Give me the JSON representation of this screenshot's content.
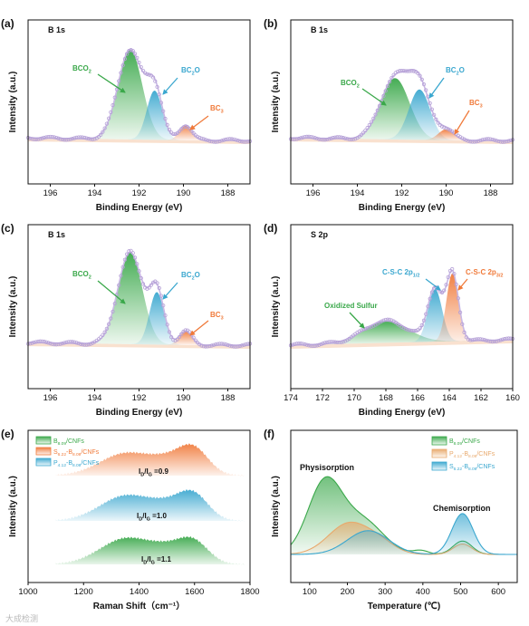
{
  "colors": {
    "green": "#3aa84a",
    "cyan": "#3aa7cf",
    "orange": "#f07a3a",
    "envelope": "#c9b8e4",
    "dots": "#b49fd6",
    "baseline": "#f4c9a8",
    "peach": "#e8a96c"
  },
  "watermark": "大成检测",
  "chart_data": [
    {
      "id": "a",
      "type": "area",
      "panel_label": "(a)",
      "title": "B 1s",
      "xlabel": "Binding Energy (eV)",
      "ylabel": "Intensity (a.u.)",
      "xlim": [
        197,
        187
      ],
      "xticks": [
        196,
        194,
        192,
        190,
        188
      ],
      "peaks": [
        {
          "name": "BCO2",
          "base": "BCO",
          "subscript": "2",
          "tail": "",
          "center": 192.4,
          "height": 0.82,
          "width": 0.55,
          "color": "#3aa84a"
        },
        {
          "name": "BC2O",
          "base": "BC",
          "subscript": "2",
          "tail": "O",
          "center": 191.3,
          "height": 0.45,
          "width": 0.35,
          "color": "#3aa7cf"
        },
        {
          "name": "BC3",
          "base": "BC",
          "subscript": "3",
          "tail": "",
          "center": 189.9,
          "height": 0.14,
          "width": 0.28,
          "color": "#f07a3a"
        }
      ]
    },
    {
      "id": "b",
      "type": "area",
      "panel_label": "(b)",
      "title": "B 1s",
      "xlabel": "Binding Energy (eV)",
      "ylabel": "Intensity (a.u.)",
      "xlim": [
        197,
        187
      ],
      "xticks": [
        196,
        194,
        192,
        190,
        188
      ],
      "peaks": [
        {
          "name": "BCO2",
          "base": "BCO",
          "subscript": "2",
          "tail": "",
          "center": 192.3,
          "height": 0.56,
          "width": 0.65,
          "color": "#3aa84a"
        },
        {
          "name": "BC2O",
          "base": "BC",
          "subscript": "2",
          "tail": "O",
          "center": 191.2,
          "height": 0.46,
          "width": 0.48,
          "color": "#3aa7cf"
        },
        {
          "name": "BC3",
          "base": "BC",
          "subscript": "3",
          "tail": "",
          "center": 190.0,
          "height": 0.1,
          "width": 0.35,
          "color": "#f07a3a"
        }
      ]
    },
    {
      "id": "c",
      "type": "area",
      "panel_label": "(c)",
      "title": "B 1s",
      "xlabel": "Binding Energy (eV)",
      "ylabel": "Intensity (a.u.)",
      "xlim": [
        197,
        187
      ],
      "xticks": [
        196,
        194,
        192,
        190,
        188
      ],
      "peaks": [
        {
          "name": "BCO2",
          "base": "BCO",
          "subscript": "2",
          "tail": "",
          "center": 192.4,
          "height": 0.84,
          "width": 0.55,
          "color": "#3aa84a"
        },
        {
          "name": "BC2O",
          "base": "BC",
          "subscript": "2",
          "tail": "O",
          "center": 191.2,
          "height": 0.48,
          "width": 0.33,
          "color": "#3aa7cf"
        },
        {
          "name": "BC3",
          "base": "BC",
          "subscript": "3",
          "tail": "",
          "center": 189.9,
          "height": 0.13,
          "width": 0.28,
          "color": "#f07a3a"
        }
      ]
    },
    {
      "id": "d",
      "type": "area",
      "panel_label": "(d)",
      "title": "S 2p",
      "xlabel": "Binding Energy (eV)",
      "ylabel": "Intensity (a.u.)",
      "xlim": [
        174,
        160
      ],
      "xticks": [
        174,
        172,
        170,
        168,
        166,
        164,
        162,
        160
      ],
      "peaks": [
        {
          "name": "Oxidized Sulfur",
          "base": "Oxidized Sulfur",
          "subscript": "",
          "tail": "",
          "center": 168.0,
          "height": 0.2,
          "width": 1.4,
          "color": "#3aa84a"
        },
        {
          "name": "C-S-C 2p1/2",
          "base": "C-S-C 2p",
          "subscript": "1/2",
          "tail": "",
          "center": 164.9,
          "height": 0.48,
          "width": 0.45,
          "color": "#3aa7cf"
        },
        {
          "name": "C-S-C 2p3/2",
          "base": "C-S-C 2p",
          "subscript": "3/2",
          "tail": "",
          "center": 163.8,
          "height": 0.62,
          "width": 0.38,
          "color": "#f07a3a"
        }
      ]
    },
    {
      "id": "e",
      "type": "area",
      "panel_label": "(e)",
      "xlabel": "Raman Shift（cm⁻¹）",
      "ylabel": "Intensity (a.u.)",
      "xlim": [
        1000,
        1800
      ],
      "xticks": [
        1000,
        1200,
        1400,
        1600,
        1800
      ],
      "series": [
        {
          "legend_base": "B",
          "legend_sub": "8.09",
          "legend_tail": "/CNFs",
          "ratio": "1.1",
          "color": "#3aa84a",
          "D_height": 0.72,
          "G_height": 0.62
        },
        {
          "legend_base": "S",
          "legend_sub": "6.22",
          "legend_mid": "-B",
          "legend_sub2": "8.09",
          "legend_tail": "/CNFs",
          "ratio": "0.9",
          "color": "#f07a3a",
          "D_height": 0.62,
          "G_height": 0.74
        },
        {
          "legend_base": "P",
          "legend_sub": "4.12",
          "legend_mid": "-B",
          "legend_sub2": "8.09",
          "legend_tail": "/CNFs",
          "ratio": "1.0",
          "color": "#3aa7cf",
          "D_height": 0.7,
          "G_height": 0.72
        }
      ]
    },
    {
      "id": "f",
      "type": "area",
      "panel_label": "(f)",
      "xlabel": "Temperature (℃)",
      "ylabel": "Intensity (a.u.)",
      "xlim": [
        50,
        650
      ],
      "xticks": [
        100,
        200,
        300,
        400,
        500,
        600
      ],
      "annotations": [
        "Physisorption",
        "Chemisorption"
      ],
      "series": [
        {
          "legend_base": "B",
          "legend_sub": "8.09",
          "legend_tail": "/CNFs",
          "color": "#3aa84a"
        },
        {
          "legend_base": "P",
          "legend_sub": "4.12",
          "legend_mid": "-B",
          "legend_sub2": "8.09",
          "legend_tail": "/CNFs",
          "color": "#e8a96c"
        },
        {
          "legend_base": "S",
          "legend_sub": "6.22",
          "legend_mid": "-B",
          "legend_sub2": "8.09",
          "legend_tail": "/CNFs",
          "color": "#3aa7cf"
        }
      ]
    }
  ]
}
